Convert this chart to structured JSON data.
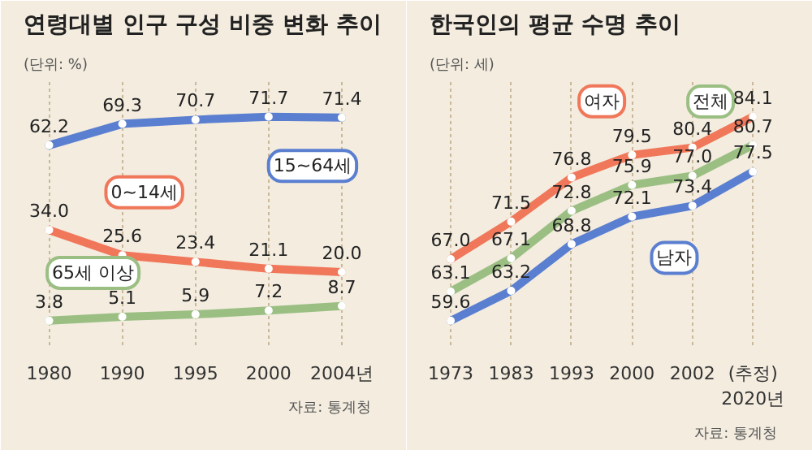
{
  "chart_data": [
    {
      "type": "line",
      "title": "연령대별 인구 구성 비중 변화 추이",
      "subtitle": "(단위: %)",
      "categories": [
        "1980",
        "1990",
        "1995",
        "2000",
        "2004년"
      ],
      "series": [
        {
          "name": "15~64세",
          "color": "#5b7fd0",
          "values": [
            62.2,
            69.3,
            70.7,
            71.7,
            71.4
          ],
          "value_labels": [
            "62.2",
            "69.3",
            "70.7",
            "71.7",
            "71.4"
          ]
        },
        {
          "name": "0~14세",
          "color": "#f0775a",
          "values": [
            34.0,
            25.6,
            23.4,
            21.1,
            20.0
          ],
          "value_labels": [
            "34.0",
            "25.6",
            "23.4",
            "21.1",
            "20.0"
          ]
        },
        {
          "name": "65세 이상",
          "color": "#9bbf83",
          "values": [
            3.8,
            5.1,
            5.9,
            7.2,
            8.7
          ],
          "value_labels": [
            "3.8",
            "5.1",
            "5.9",
            "7.2",
            "8.7"
          ]
        }
      ],
      "grid": "x",
      "marker": "circle",
      "line_style": "solid",
      "annotations": [
        "자료: 통계청"
      ]
    },
    {
      "type": "line",
      "title": "한국인의 평균 수명 추이",
      "subtitle": "(단위: 세)",
      "categories": [
        "1973",
        "1983",
        "1993",
        "2000",
        "2002",
        "(추정)\n2020년"
      ],
      "series": [
        {
          "name": "여자",
          "color": "#f0775a",
          "values": [
            67.0,
            71.5,
            76.8,
            79.5,
            80.4,
            84.1
          ],
          "value_labels": [
            "67.0",
            "71.5",
            "76.8",
            "79.5",
            "80.4",
            "84.1"
          ]
        },
        {
          "name": "전체",
          "color": "#9bbf83",
          "values": [
            63.1,
            67.1,
            72.8,
            75.9,
            77.0,
            80.7
          ],
          "value_labels": [
            "63.1",
            "67.1",
            "72.8",
            "75.9",
            "77.0",
            "80.7"
          ]
        },
        {
          "name": "남자",
          "color": "#5b7fd0",
          "values": [
            59.6,
            63.2,
            68.8,
            72.1,
            73.4,
            77.5
          ],
          "value_labels": [
            "59.6",
            "63.2",
            "68.8",
            "72.1",
            "73.4",
            "77.5"
          ]
        }
      ],
      "grid": "x",
      "marker": "circle",
      "line_style": "solid",
      "annotations": [
        "자료: 통계청"
      ]
    }
  ]
}
